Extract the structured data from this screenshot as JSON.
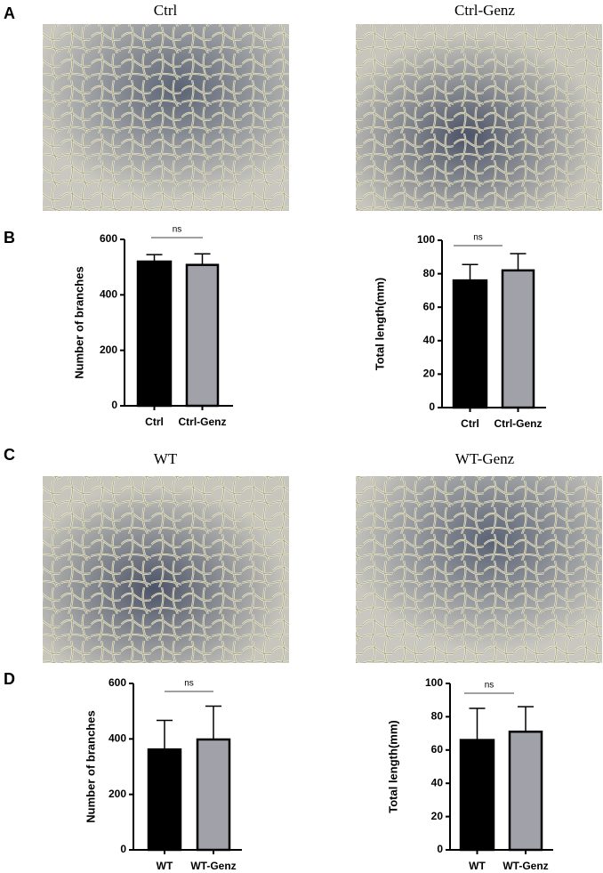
{
  "panels": [
    {
      "label": "A",
      "images": [
        "Ctrl",
        "Ctrl-Genz"
      ]
    },
    {
      "label": "B"
    },
    {
      "label": "C",
      "images": [
        "WT",
        "WT-Genz"
      ]
    },
    {
      "label": "D"
    }
  ],
  "chart_data": [
    {
      "type": "bar",
      "ylabel": "Number of branches",
      "categories": [
        "Ctrl",
        "Ctrl-Genz"
      ],
      "values": [
        520,
        508
      ],
      "errors": [
        25,
        40
      ],
      "colors": [
        "#000000",
        "#a1a1aa"
      ],
      "ylim": [
        0,
        600
      ],
      "yticks": [
        0,
        200,
        400,
        600
      ],
      "annotation": "ns"
    },
    {
      "type": "bar",
      "ylabel": "Total length(mm)",
      "categories": [
        "Ctrl",
        "Ctrl-Genz"
      ],
      "values": [
        76,
        82
      ],
      "errors": [
        9.5,
        10
      ],
      "colors": [
        "#000000",
        "#a1a1aa"
      ],
      "ylim": [
        0,
        100
      ],
      "yticks": [
        0,
        20,
        40,
        60,
        80,
        100
      ],
      "annotation": "ns"
    },
    {
      "type": "bar",
      "ylabel": "Number of branches",
      "categories": [
        "WT",
        "WT-Genz"
      ],
      "values": [
        362,
        398
      ],
      "errors": [
        105,
        120
      ],
      "colors": [
        "#000000",
        "#a1a1aa"
      ],
      "ylim": [
        0,
        600
      ],
      "yticks": [
        0,
        200,
        400,
        600
      ],
      "annotation": "ns"
    },
    {
      "type": "bar",
      "ylabel": "Total length(mm)",
      "categories": [
        "WT",
        "WT-Genz"
      ],
      "values": [
        66,
        71
      ],
      "errors": [
        19,
        15
      ],
      "colors": [
        "#000000",
        "#a1a1aa"
      ],
      "ylim": [
        0,
        100
      ],
      "yticks": [
        0,
        20,
        40,
        60,
        80,
        100
      ],
      "annotation": "ns"
    }
  ]
}
